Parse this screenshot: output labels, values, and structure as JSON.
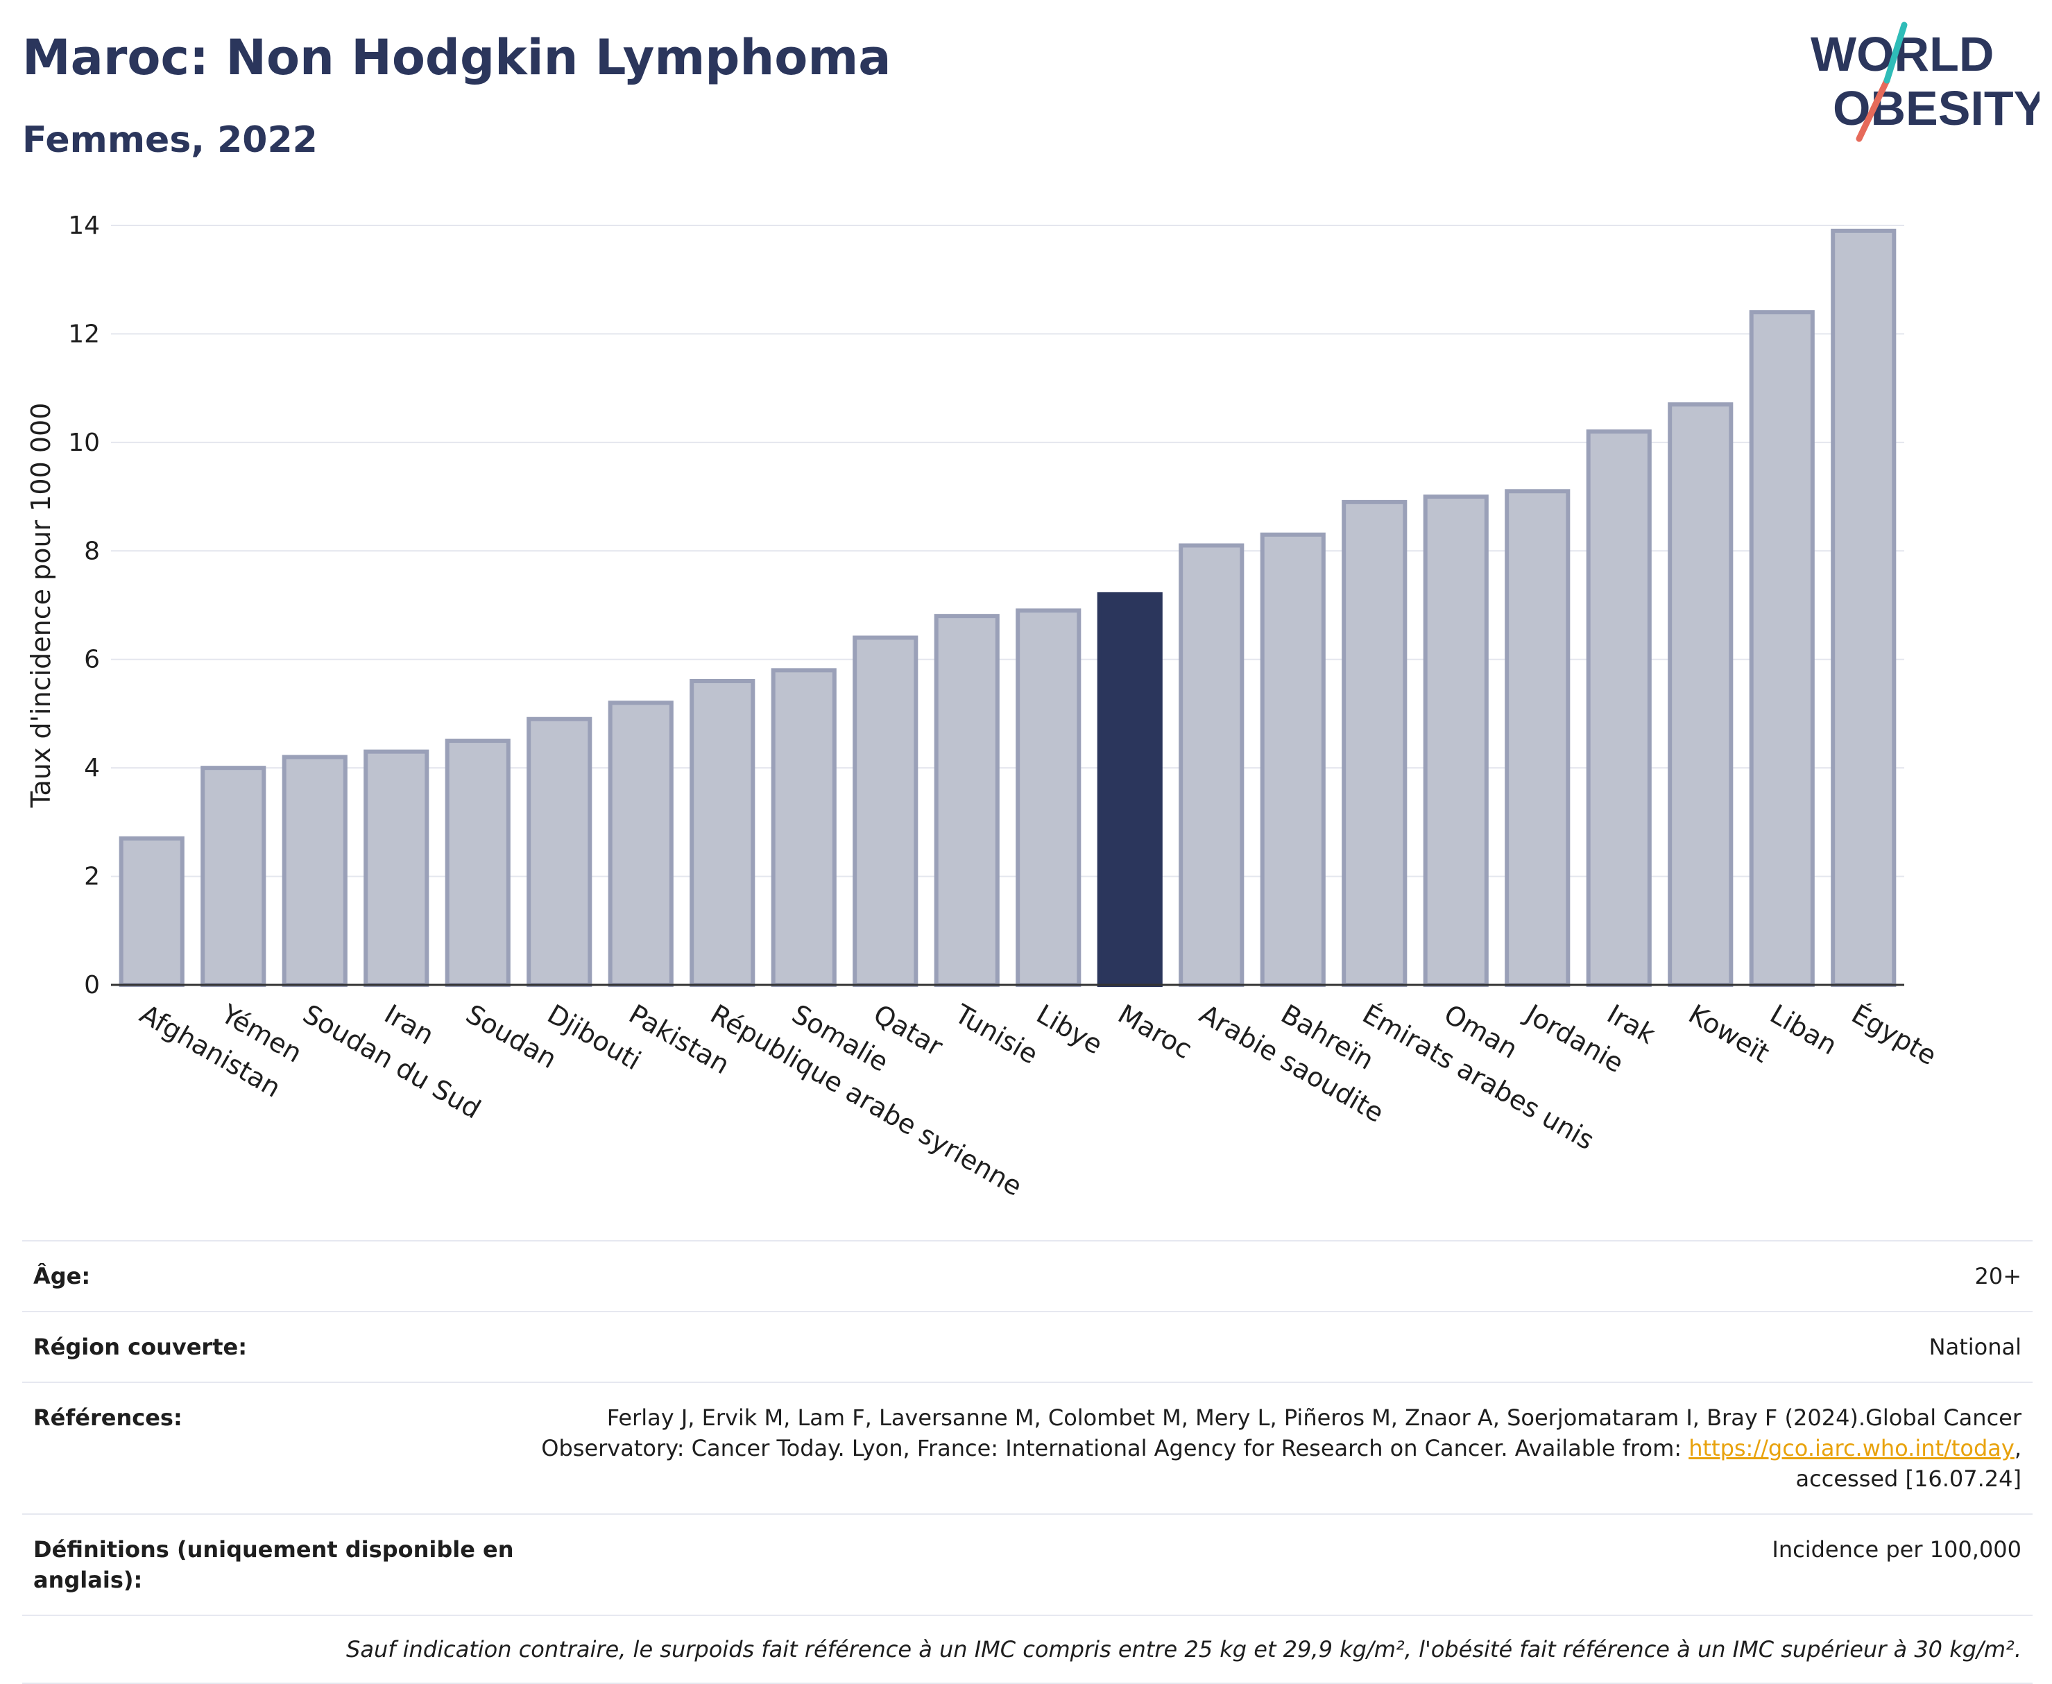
{
  "title": "Maroc: Non Hodgkin Lymphoma",
  "subtitle": "Femmes, 2022",
  "logo": {
    "line1": "WORLD",
    "line2": "OBESITY"
  },
  "colors": {
    "highlight": "#2b365c",
    "bar": "#bec2cf",
    "bar_edge": "#9aa0b8",
    "title": "#2b365c",
    "link": "#e8a20c"
  },
  "chart_data": {
    "type": "bar",
    "ylabel": "Taux d'incidence pour 100 000",
    "xlabel": "",
    "ylim": [
      0,
      14
    ],
    "yticks": [
      0,
      2,
      4,
      6,
      8,
      10,
      12,
      14
    ],
    "grid": true,
    "highlight": "Maroc",
    "categories": [
      "Afghanistan",
      "Yémen",
      "Soudan du Sud",
      "Iran",
      "Soudan",
      "Djibouti",
      "Pakistan",
      "République arabe syrienne",
      "Somalie",
      "Qatar",
      "Tunisie",
      "Libye",
      "Maroc",
      "Arabie saoudite",
      "Bahreïn",
      "Émirats arabes unis",
      "Oman",
      "Jordanie",
      "Irak",
      "Koweït",
      "Liban",
      "Égypte"
    ],
    "values": [
      2.7,
      4.0,
      4.2,
      4.3,
      4.5,
      4.9,
      5.2,
      5.6,
      5.8,
      6.4,
      6.8,
      6.9,
      7.2,
      8.1,
      8.3,
      8.9,
      9.0,
      9.1,
      10.2,
      10.7,
      12.4,
      13.9
    ]
  },
  "info": {
    "age_label": "Âge:",
    "age_value": "20+",
    "region_label": "Région couverte:",
    "region_value": "National",
    "ref_label": "Références:",
    "ref_text_1": "Ferlay J, Ervik M, Lam F, Laversanne M, Colombet M, Mery L, Piñeros M, Znaor A, Soerjomataram I, Bray F (2024).Global Cancer Observatory: Cancer Today. Lyon, France: International Agency for Research on Cancer. Available from: ",
    "ref_link": "https://gco.iarc.who.int/today",
    "ref_text_2": ", accessed [16.07.24]",
    "def_label": "Définitions (uniquement disponible en anglais):",
    "def_value": "Incidence per 100,000",
    "note": "Sauf indication contraire, le surpoids fait référence à un IMC compris entre 25 kg et 29,9 kg/m², l'obésité fait référence à un IMC supérieur à 30 kg/m²."
  }
}
